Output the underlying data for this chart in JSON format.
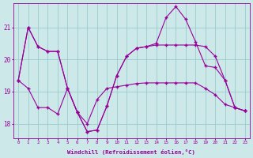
{
  "xlabel": "Windchill (Refroidissement éolien,°C)",
  "background_color": "#cce8e8",
  "grid_color": "#99cccc",
  "line_color": "#990099",
  "x_ticks": [
    0,
    1,
    2,
    3,
    4,
    5,
    6,
    7,
    8,
    9,
    10,
    11,
    12,
    13,
    14,
    15,
    16,
    17,
    18,
    19,
    20,
    21,
    22,
    23
  ],
  "y_ticks": [
    18,
    19,
    20,
    21
  ],
  "ylim": [
    17.55,
    21.75
  ],
  "xlim": [
    -0.5,
    23.5
  ],
  "series1": [
    19.35,
    21.0,
    20.4,
    20.25,
    20.25,
    19.1,
    18.35,
    17.75,
    17.8,
    18.55,
    19.5,
    20.1,
    20.35,
    20.4,
    20.45,
    20.45,
    20.45,
    20.45,
    20.45,
    20.4,
    20.1,
    19.35,
    18.5,
    18.4
  ],
  "series2": [
    19.35,
    21.0,
    20.4,
    20.25,
    20.25,
    19.1,
    18.35,
    17.75,
    17.8,
    18.55,
    19.5,
    20.1,
    20.35,
    20.4,
    20.5,
    21.3,
    21.65,
    21.25,
    20.55,
    19.8,
    19.75,
    19.35,
    18.5,
    18.4
  ],
  "series3": [
    19.35,
    19.1,
    18.5,
    18.5,
    18.3,
    19.1,
    18.35,
    18.0,
    18.75,
    19.1,
    19.15,
    19.2,
    19.25,
    19.27,
    19.27,
    19.27,
    19.27,
    19.27,
    19.27,
    19.1,
    18.9,
    18.6,
    18.5,
    18.4
  ]
}
